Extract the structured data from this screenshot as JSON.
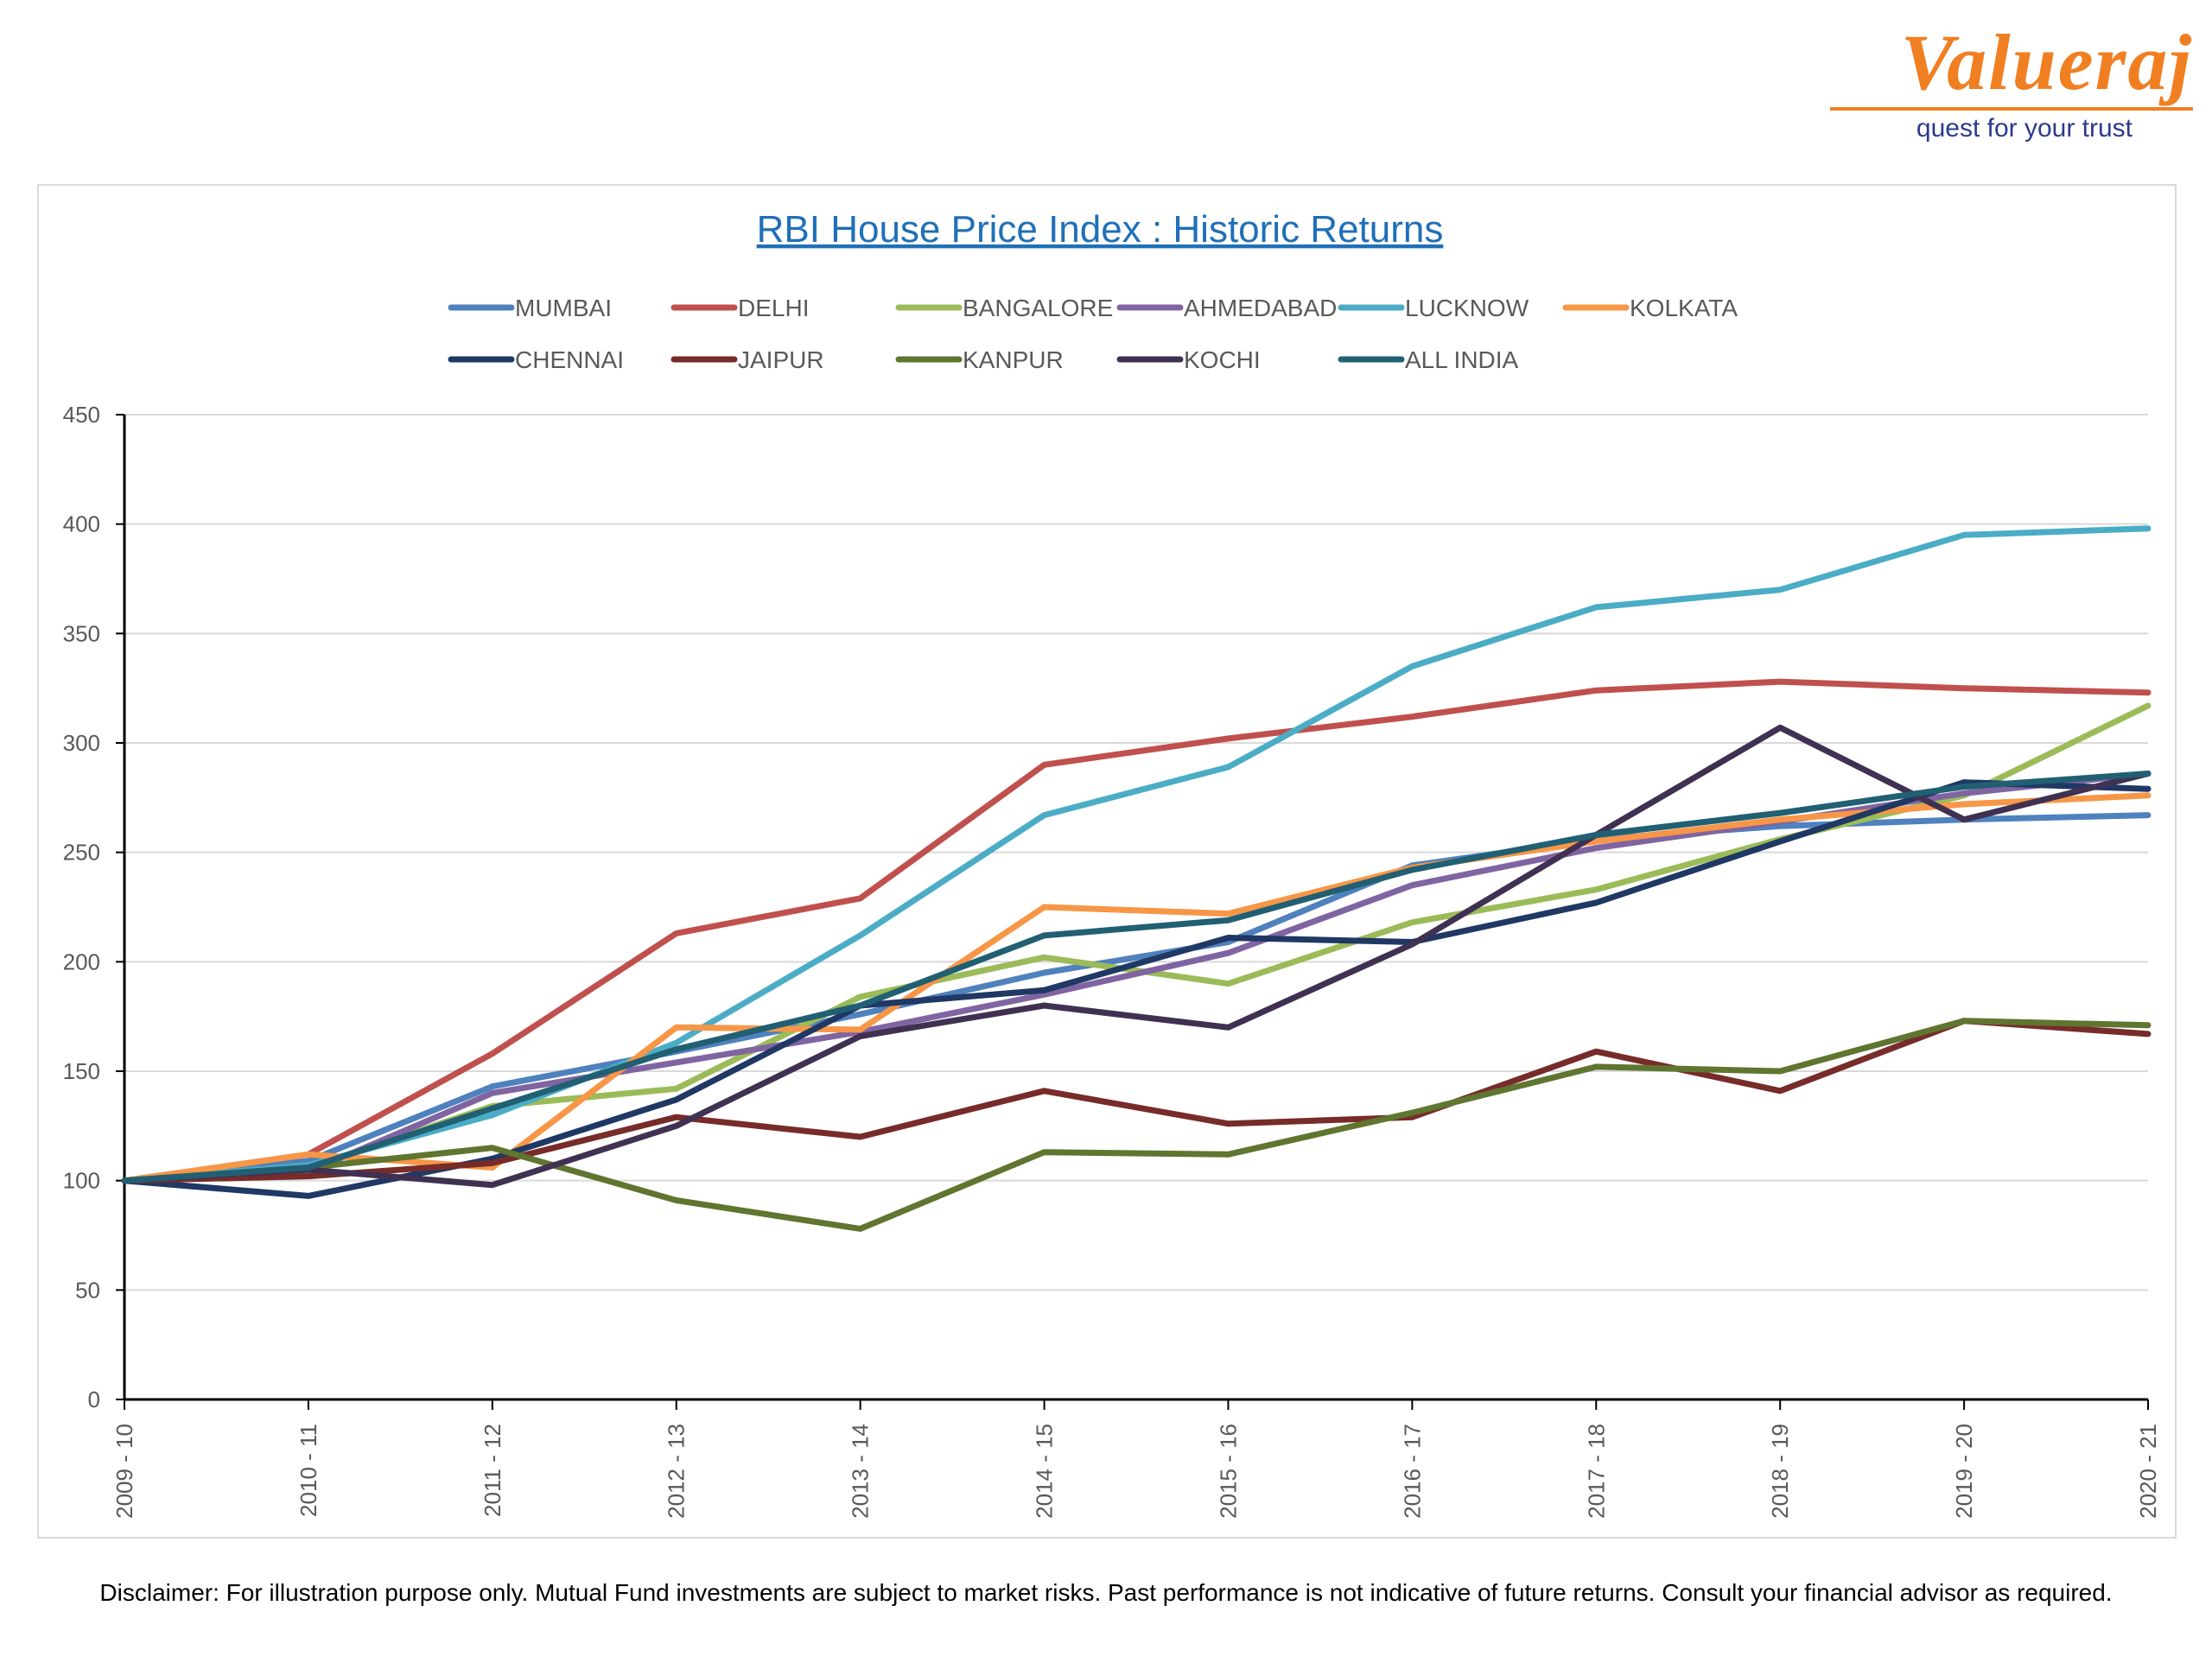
{
  "logo": {
    "brand": "Valueraj",
    "tagline": "quest for your trust"
  },
  "disclaimer": "Disclaimer: For illustration purpose only. Mutual Fund investments are subject to market risks. Past performance is not indicative of future returns. Consult your financial advisor as required.",
  "chart_data": {
    "type": "line",
    "title": "RBI House Price Index : Historic Returns",
    "xlabel": "",
    "ylabel": "",
    "ylim": [
      0,
      450
    ],
    "yticks": [
      0,
      50,
      100,
      150,
      200,
      250,
      300,
      350,
      400,
      450
    ],
    "grid": true,
    "legend_position": "top",
    "categories": [
      "2009 - 10",
      "2010 - 11",
      "2011 - 12",
      "2012 - 13",
      "2013 - 14",
      "2014 - 15",
      "2015 - 16",
      "2016 - 17",
      "2017 - 18",
      "2018 - 19",
      "2019 - 20",
      "2020 - 21"
    ],
    "series": [
      {
        "name": "MUMBAI",
        "color": "#4F81BD",
        "values": [
          100,
          109,
          143,
          159,
          176,
          195,
          209,
          244,
          256,
          262,
          265,
          267
        ]
      },
      {
        "name": "DELHI",
        "color": "#C0504D",
        "values": [
          100,
          112,
          158,
          213,
          229,
          290,
          302,
          312,
          324,
          328,
          325,
          323
        ]
      },
      {
        "name": "BANGALORE",
        "color": "#9BBB59",
        "values": [
          100,
          106,
          134,
          142,
          184,
          202,
          190,
          218,
          233,
          256,
          276,
          317
        ]
      },
      {
        "name": "AHMEDABAD",
        "color": "#8064A2",
        "values": [
          100,
          104,
          140,
          154,
          168,
          185,
          204,
          235,
          252,
          264,
          277,
          286
        ]
      },
      {
        "name": "LUCKNOW",
        "color": "#4BACC6",
        "values": [
          100,
          107,
          130,
          163,
          212,
          267,
          289,
          335,
          362,
          370,
          395,
          398
        ]
      },
      {
        "name": "KOLKATA",
        "color": "#F79646",
        "values": [
          100,
          112,
          106,
          170,
          169,
          225,
          222,
          243,
          255,
          265,
          272,
          276
        ]
      },
      {
        "name": "CHENNAI",
        "color": "#1F3864",
        "values": [
          100,
          93,
          110,
          137,
          180,
          187,
          211,
          209,
          227,
          255,
          282,
          279
        ]
      },
      {
        "name": "JAIPUR",
        "color": "#772C2A",
        "values": [
          100,
          102,
          108,
          129,
          120,
          141,
          126,
          129,
          159,
          141,
          173,
          167
        ]
      },
      {
        "name": "KANPUR",
        "color": "#5F7530",
        "values": [
          100,
          106,
          115,
          91,
          78,
          113,
          112,
          131,
          152,
          150,
          173,
          171
        ]
      },
      {
        "name": "KOCHI",
        "color": "#403152",
        "values": [
          100,
          105,
          98,
          125,
          166,
          180,
          170,
          208,
          258,
          307,
          265,
          286
        ]
      },
      {
        "name": "ALL INDIA",
        "color": "#215F73",
        "values": [
          100,
          106,
          133,
          160,
          180,
          212,
          219,
          242,
          258,
          268,
          280,
          286
        ]
      }
    ]
  }
}
